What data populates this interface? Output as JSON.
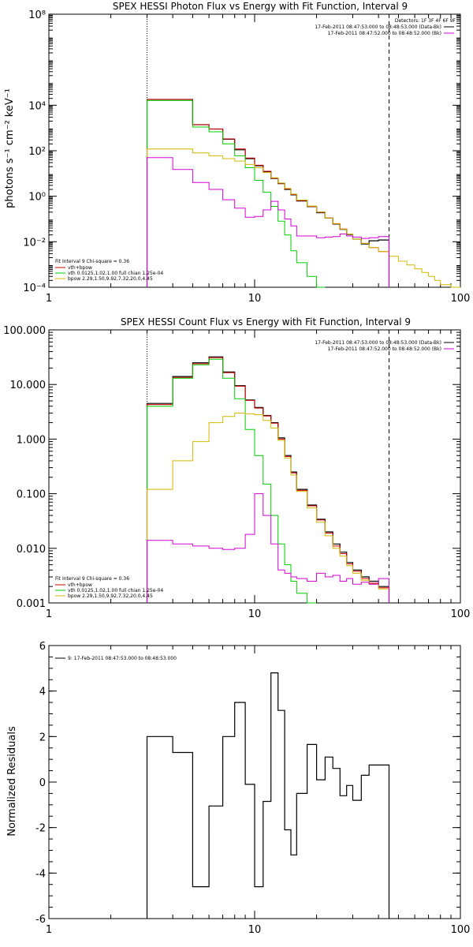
{
  "colors": {
    "background": "#ffffff",
    "axes": "#000000",
    "data": "#000000",
    "total": "#d00000",
    "vth": "#00cc00",
    "bpow": "#d4b800",
    "background_model": "#d400d4",
    "interval_markers": "#000000"
  },
  "chart_data": [
    {
      "id": "photon",
      "type": "line",
      "title": "SPEX HESSI Photon Flux vs Energy with Fit Function, Interval 9",
      "xlabel": "",
      "ylabel": "photons s⁻¹ cm⁻² keV⁻¹",
      "xscale": "log",
      "yscale": "log",
      "xlim": [
        1,
        100
      ],
      "ylim": [
        0.0001,
        100000000
      ],
      "xticks": [
        {
          "v": 1,
          "label": "1"
        },
        {
          "v": 10,
          "label": "10"
        },
        {
          "v": 100,
          "label": "100"
        }
      ],
      "yticks": [
        {
          "v": 0.0001,
          "label": "10⁻⁴"
        },
        {
          "v": 0.01,
          "label": "10⁻²"
        },
        {
          "v": 1,
          "label": "10⁰"
        },
        {
          "v": 100,
          "label": "10²"
        },
        {
          "v": 10000,
          "label": "10⁴"
        },
        {
          "v": 100000000,
          "label": "10⁸"
        }
      ],
      "markers": [
        {
          "x": 3,
          "style": "dotted"
        },
        {
          "x": 45,
          "style": "dashed"
        }
      ],
      "info_lines": [
        "Detectors: 1F 3F 4F 6F 9F",
        "17-Feb-2011 08:47:53.000 to 08:48:53.000 (Data-Bk)",
        "17-Feb-2011 08:47:52.000 to 08:48:52.000 (Bk)"
      ],
      "legend_header": "Fit Interval  9    Chi-square = 0.36",
      "legend": [
        {
          "name": "vth+bpow",
          "color": "#d00000"
        },
        {
          "name": "vth 0.0125,1.02,1.00  full chian 1.25e-04",
          "color": "#00cc00"
        },
        {
          "name": "bpow 2.29,1.50,9.92,7.32,20.0,4.45",
          "color": "#d4b800"
        }
      ],
      "series": [
        {
          "name": "data",
          "color": "#000000",
          "width": 1.2,
          "edges": [
            3,
            4,
            5,
            6,
            7,
            8,
            9,
            10,
            11,
            12,
            13,
            14,
            15,
            16,
            18,
            20,
            22,
            24,
            26,
            28,
            30,
            33,
            36,
            40,
            45
          ],
          "values": [
            18000,
            18000,
            1400,
            900,
            320,
            110,
            45,
            22,
            12,
            6,
            3.6,
            2.0,
            1.15,
            0.62,
            0.35,
            0.19,
            0.11,
            0.06,
            0.035,
            0.021,
            0.013,
            0.008,
            0.011,
            0.012
          ]
        },
        {
          "name": "vth+bpow",
          "color": "#d00000",
          "width": 1,
          "edges": [
            3,
            4,
            5,
            6,
            7,
            8,
            9,
            10,
            11,
            12,
            13,
            14,
            15,
            16,
            18,
            20,
            22,
            24,
            26,
            28,
            30,
            33,
            36,
            40,
            45
          ],
          "values": [
            18000,
            18000,
            1400,
            900,
            330,
            120,
            48,
            23,
            12.5,
            6.2,
            3.7,
            2.1,
            1.2,
            0.65,
            0.36,
            0.2,
            0.11,
            0.062,
            0.036,
            0.022,
            0.013,
            0.0085,
            0.0055,
            0.0037
          ]
        },
        {
          "name": "vth",
          "color": "#00cc00",
          "width": 1,
          "edges": [
            3,
            4,
            5,
            6,
            7,
            8,
            9,
            10,
            11,
            12,
            13,
            14,
            15,
            16,
            18,
            20,
            22
          ],
          "values": [
            16000,
            16000,
            1100,
            680,
            200,
            60,
            18,
            5,
            1.5,
            0.36,
            0.08,
            0.02,
            0.004,
            0.0012,
            0.0003,
            0.0001
          ]
        },
        {
          "name": "bpow",
          "color": "#d4b800",
          "width": 1,
          "edges": [
            3,
            4,
            5,
            6,
            7,
            8,
            9,
            10,
            11,
            12,
            13,
            14,
            15,
            16,
            18,
            20,
            22,
            24,
            26,
            28,
            30,
            33,
            36,
            40,
            45,
            50,
            55,
            60,
            65,
            70,
            75,
            80,
            90,
            100
          ],
          "values": [
            120,
            120,
            80,
            60,
            45,
            35,
            25,
            18,
            11,
            6.5,
            3.8,
            2.2,
            1.25,
            0.68,
            0.37,
            0.2,
            0.11,
            0.063,
            0.036,
            0.022,
            0.013,
            0.0085,
            0.0055,
            0.0037,
            0.0023,
            0.0014,
            0.00095,
            0.00065,
            0.00045,
            0.0003,
            0.0002,
            0.00013,
            9e-05
          ]
        },
        {
          "name": "background",
          "color": "#d400d4",
          "width": 1,
          "edges": [
            3,
            4,
            5,
            6,
            7,
            8,
            9,
            10,
            11,
            12,
            13,
            14,
            15,
            16,
            18,
            20,
            22,
            24,
            26,
            28,
            30,
            33,
            36,
            40,
            45
          ],
          "values": [
            50,
            15,
            4,
            2,
            0.7,
            0.3,
            0.12,
            0.13,
            0.25,
            0.6,
            0.25,
            0.1,
            0.05,
            0.018,
            0.018,
            0.015,
            0.016,
            0.017,
            0.022,
            0.018,
            0.016,
            0.014,
            0.015,
            0.017
          ]
        }
      ]
    },
    {
      "id": "count",
      "type": "line",
      "title": "SPEX HESSI Count Flux vs Energy with Fit Function, Interval 9",
      "xlabel": "",
      "ylabel": "",
      "xscale": "log",
      "yscale": "log",
      "xlim": [
        1,
        100
      ],
      "ylim": [
        0.001,
        100
      ],
      "xticks": [
        {
          "v": 1,
          "label": "1"
        },
        {
          "v": 10,
          "label": "10"
        },
        {
          "v": 100,
          "label": "100"
        }
      ],
      "yticks": [
        {
          "v": 0.001,
          "label": "0.001"
        },
        {
          "v": 0.01,
          "label": "0.010"
        },
        {
          "v": 0.1,
          "label": "0.100"
        },
        {
          "v": 1,
          "label": "1.000"
        },
        {
          "v": 10,
          "label": "10.000"
        },
        {
          "v": 100,
          "label": "100.000"
        }
      ],
      "markers": [
        {
          "x": 3,
          "style": "dotted"
        },
        {
          "x": 45,
          "style": "dashed"
        }
      ],
      "info_lines": [
        "17-Feb-2011 08:47:53.000 to 08:48:53.000 (Data-Bk)",
        "17-Feb-2011 08:47:52.000 to 08:48:52.000 (Bk)"
      ],
      "legend_header": "Fit Interval  9    Chi-square = 0.36",
      "legend": [
        {
          "name": "vth+bpow",
          "color": "#d00000"
        },
        {
          "name": "vth 0.0125,1.02,1.00  full chian 1.25e-04",
          "color": "#00cc00"
        },
        {
          "name": "bpow 2.29,1.50,9.92,7.32,20.0,4.45",
          "color": "#d4b800"
        }
      ],
      "series": [
        {
          "name": "data",
          "color": "#000000",
          "width": 1.2,
          "edges": [
            3,
            4,
            5,
            6,
            7,
            8,
            9,
            10,
            11,
            12,
            13,
            14,
            15,
            16,
            18,
            20,
            22,
            24,
            26,
            28,
            30,
            33,
            36,
            40,
            45
          ],
          "values": [
            4.5,
            14,
            25,
            32,
            17,
            9.5,
            5.2,
            3.8,
            2.7,
            2.0,
            1.05,
            0.5,
            0.25,
            0.12,
            0.062,
            0.034,
            0.02,
            0.012,
            0.0085,
            0.0055,
            0.004,
            0.003,
            0.0025,
            0.002
          ]
        },
        {
          "name": "vth+bpow",
          "color": "#d00000",
          "width": 1,
          "edges": [
            3,
            4,
            5,
            6,
            7,
            8,
            9,
            10,
            11,
            12,
            13,
            14,
            15,
            16,
            18,
            20,
            22,
            24,
            26,
            28,
            30,
            33,
            36,
            40,
            45
          ],
          "values": [
            4.3,
            13.5,
            24,
            31,
            16.5,
            9.3,
            5.1,
            3.7,
            2.65,
            1.95,
            1.0,
            0.48,
            0.24,
            0.115,
            0.06,
            0.033,
            0.019,
            0.011,
            0.008,
            0.0052,
            0.0038,
            0.0028,
            0.0023,
            0.0019
          ]
        },
        {
          "name": "vth",
          "color": "#00cc00",
          "width": 1,
          "edges": [
            3,
            4,
            5,
            6,
            7,
            8,
            9,
            10,
            11,
            12,
            13,
            14,
            15,
            16,
            18,
            20
          ],
          "values": [
            4.0,
            13,
            23,
            29,
            13,
            5.5,
            1.5,
            0.5,
            0.15,
            0.04,
            0.012,
            0.005,
            0.0025,
            0.0015,
            0.0008
          ]
        },
        {
          "name": "bpow",
          "color": "#d4b800",
          "width": 1,
          "edges": [
            3,
            4,
            5,
            6,
            7,
            8,
            9,
            10,
            11,
            12,
            13,
            14,
            15,
            16,
            18,
            20,
            22,
            24,
            26,
            28,
            30,
            33,
            36,
            40,
            45
          ],
          "values": [
            0.12,
            0.4,
            0.9,
            2.0,
            2.6,
            3.0,
            2.9,
            2.8,
            2.2,
            1.6,
            0.95,
            0.45,
            0.22,
            0.11,
            0.055,
            0.03,
            0.017,
            0.01,
            0.0072,
            0.0048,
            0.0035,
            0.0026,
            0.0022,
            0.0018
          ]
        },
        {
          "name": "background",
          "color": "#d400d4",
          "width": 1,
          "edges": [
            3,
            4,
            5,
            6,
            7,
            8,
            9,
            10,
            11,
            12,
            13,
            14,
            15,
            16,
            18,
            20,
            22,
            24,
            26,
            28,
            30,
            33,
            36,
            40,
            45
          ],
          "values": [
            0.014,
            0.012,
            0.011,
            0.01,
            0.0095,
            0.01,
            0.018,
            0.1,
            0.04,
            0.012,
            0.004,
            0.0035,
            0.003,
            0.0028,
            0.0025,
            0.0035,
            0.003,
            0.0032,
            0.0025,
            0.0028,
            0.0022,
            0.0024,
            0.0022,
            0.0028
          ]
        }
      ]
    },
    {
      "id": "residuals",
      "type": "line",
      "title": "",
      "xlabel": "",
      "ylabel": "Normalized Residuals",
      "xscale": "log",
      "yscale": "linear",
      "xlim": [
        1,
        100
      ],
      "ylim": [
        -6,
        6
      ],
      "xticks": [
        {
          "v": 1,
          "label": "1"
        },
        {
          "v": 10,
          "label": "10"
        },
        {
          "v": 100,
          "label": "100"
        }
      ],
      "yticks": [
        {
          "v": -6,
          "label": "-6"
        },
        {
          "v": -4,
          "label": "-4"
        },
        {
          "v": -2,
          "label": "-2"
        },
        {
          "v": 0,
          "label": "0"
        },
        {
          "v": 2,
          "label": "2"
        },
        {
          "v": 4,
          "label": "4"
        },
        {
          "v": 6,
          "label": "6"
        }
      ],
      "markers": [],
      "info_lines": [],
      "legend_header": "",
      "legend": [
        {
          "name": "9: 17-Feb-2011 08:47:53.000 to 08:48:53.000",
          "color": "#000000"
        }
      ],
      "series": [
        {
          "name": "9: 17-Feb-2011 08:47:53.000 to 08:48:53.000",
          "color": "#000000",
          "width": 1.2,
          "edges": [
            3,
            4,
            5,
            6,
            7,
            8,
            9,
            10,
            11,
            12,
            13,
            14,
            15,
            16,
            18,
            20,
            22,
            24,
            26,
            28,
            30,
            33,
            36,
            40,
            45
          ],
          "values": [
            2.0,
            1.3,
            -4.6,
            -1.05,
            2.0,
            3.5,
            -0.1,
            -4.6,
            -0.85,
            4.8,
            3.15,
            -2.1,
            -3.2,
            -0.5,
            1.65,
            0.1,
            1.1,
            0.6,
            -0.6,
            -0.15,
            -0.8,
            0.3,
            0.75,
            0.75
          ],
          "drop_to_bottom": true
        }
      ]
    }
  ]
}
